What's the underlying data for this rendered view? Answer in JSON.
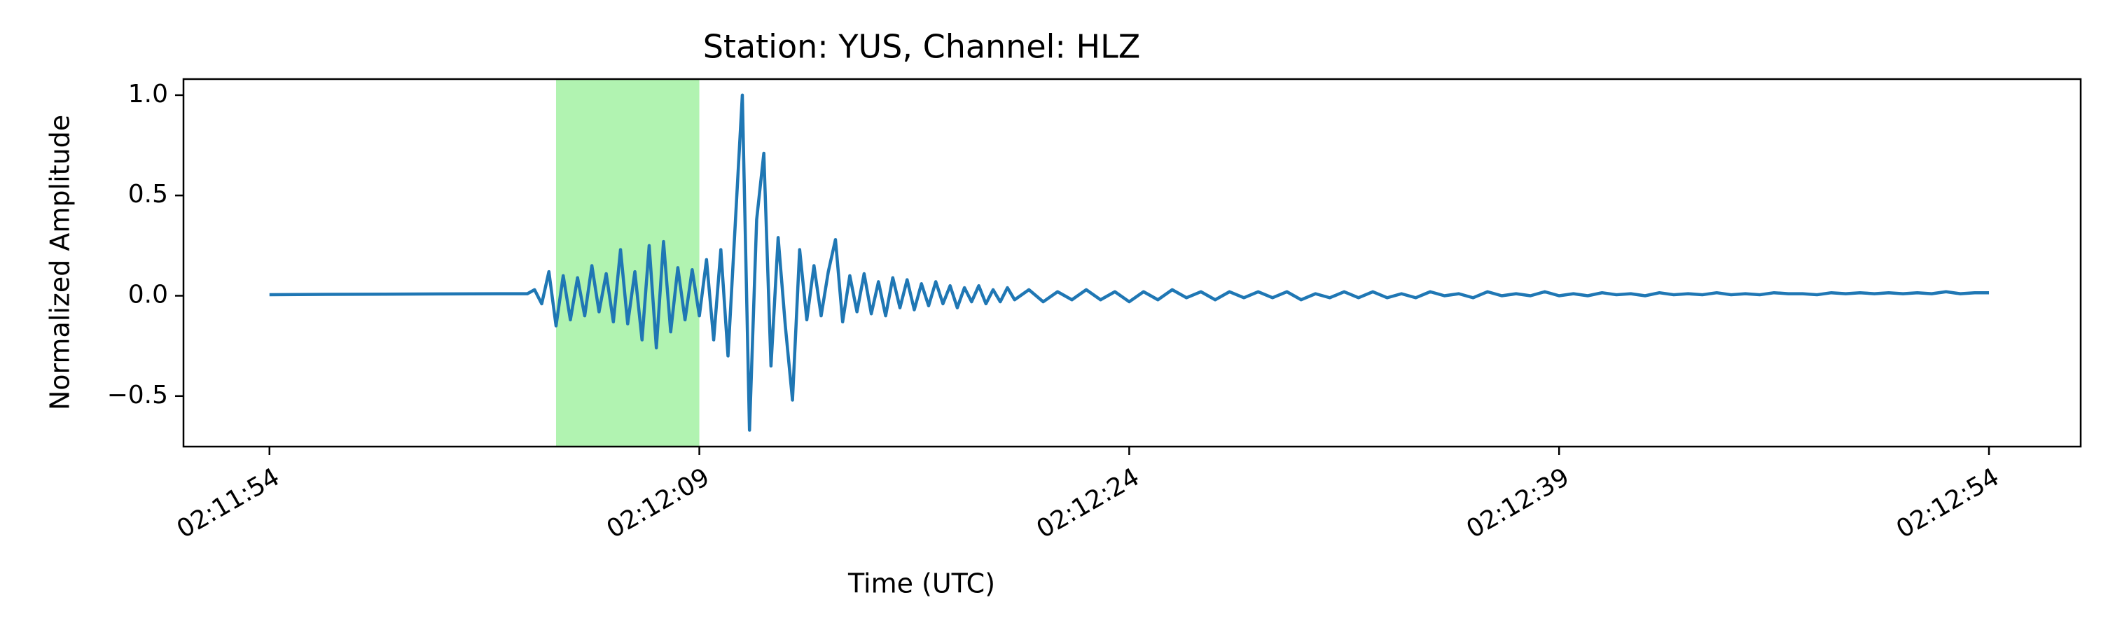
{
  "chart_data": {
    "type": "line",
    "title": "Station: YUS, Channel: HLZ",
    "x_label": "Time (UTC)",
    "y_label": "Normalized Amplitude",
    "color": "#1f77b4",
    "highlight": [
      7924,
      7929
    ],
    "highlight_color": "#b1f3b1",
    "xlim": [
      7911,
      7977.2
    ],
    "ylim": [
      -0.752,
      1.08
    ],
    "xticks": [
      {
        "value": 7914,
        "label": "02:11:54"
      },
      {
        "value": 7929,
        "label": "02:12:09"
      },
      {
        "value": 7944,
        "label": "02:12:24"
      },
      {
        "value": 7959,
        "label": "02:12:39"
      },
      {
        "value": 7974,
        "label": "02:12:54"
      }
    ],
    "yticks": [
      {
        "value": -0.5,
        "label": "−0.5"
      },
      {
        "value": 0,
        "label": "0.0"
      },
      {
        "value": 0.5,
        "label": "0.5"
      },
      {
        "value": 1,
        "label": "1.0"
      }
    ],
    "x": [
      7914,
      7916,
      7918,
      7920,
      7922,
      7923,
      7923.25,
      7923.5,
      7923.75,
      7924,
      7924.25,
      7924.5,
      7924.75,
      7925,
      7925.25,
      7925.5,
      7925.75,
      7926,
      7926.25,
      7926.5,
      7926.75,
      7927,
      7927.25,
      7927.5,
      7927.75,
      7928,
      7928.25,
      7928.5,
      7928.75,
      7929,
      7929.25,
      7929.5,
      7929.75,
      7930,
      7930.25,
      7930.5,
      7930.75,
      7931,
      7931.25,
      7931.5,
      7931.75,
      7932,
      7932.25,
      7932.5,
      7932.75,
      7933,
      7933.25,
      7933.5,
      7933.75,
      7934,
      7934.25,
      7934.5,
      7934.75,
      7935,
      7935.25,
      7935.5,
      7935.75,
      7936,
      7936.25,
      7936.5,
      7936.75,
      7937,
      7937.25,
      7937.5,
      7937.75,
      7938,
      7938.25,
      7938.5,
      7938.75,
      7939,
      7939.25,
      7939.5,
      7939.75,
      7940,
      7940.5,
      7941,
      7941.5,
      7942,
      7942.5,
      7943,
      7943.5,
      7944,
      7944.5,
      7945,
      7945.5,
      7946,
      7946.5,
      7947,
      7947.5,
      7948,
      7948.5,
      7949,
      7949.5,
      7950,
      7950.5,
      7951,
      7951.5,
      7952,
      7952.5,
      7953,
      7953.5,
      7954,
      7954.5,
      7955,
      7955.5,
      7956,
      7956.5,
      7957,
      7957.5,
      7958,
      7958.5,
      7959,
      7959.5,
      7960,
      7960.5,
      7961,
      7961.5,
      7962,
      7962.5,
      7963,
      7963.5,
      7964,
      7964.5,
      7965,
      7965.5,
      7966,
      7966.5,
      7967,
      7967.5,
      7968,
      7968.5,
      7969,
      7969.5,
      7970,
      7970.5,
      7971,
      7971.5,
      7972,
      7972.5,
      7973,
      7973.5,
      7974
    ],
    "values": [
      0.005,
      0.007,
      0.008,
      0.009,
      0.01,
      0.01,
      0.03,
      -0.04,
      0.12,
      -0.15,
      0.1,
      -0.12,
      0.09,
      -0.1,
      0.15,
      -0.08,
      0.11,
      -0.13,
      0.23,
      -0.14,
      0.12,
      -0.22,
      0.25,
      -0.26,
      0.27,
      -0.18,
      0.14,
      -0.12,
      0.13,
      -0.1,
      0.18,
      -0.22,
      0.23,
      -0.3,
      0.35,
      1.0,
      -0.67,
      0.38,
      0.71,
      -0.35,
      0.29,
      -0.15,
      -0.52,
      0.23,
      -0.12,
      0.15,
      -0.1,
      0.12,
      0.28,
      -0.13,
      0.1,
      -0.08,
      0.11,
      -0.09,
      0.07,
      -0.1,
      0.09,
      -0.06,
      0.08,
      -0.07,
      0.06,
      -0.05,
      0.07,
      -0.04,
      0.05,
      -0.06,
      0.04,
      -0.03,
      0.05,
      -0.04,
      0.03,
      -0.03,
      0.04,
      -0.02,
      0.03,
      -0.03,
      0.02,
      -0.02,
      0.03,
      -0.02,
      0.02,
      -0.03,
      0.02,
      -0.02,
      0.03,
      -0.01,
      0.02,
      -0.02,
      0.02,
      -0.01,
      0.02,
      -0.01,
      0.02,
      -0.02,
      0.01,
      -0.01,
      0.02,
      -0.01,
      0.02,
      -0.01,
      0.01,
      -0.01,
      0.02,
      0.0,
      0.01,
      -0.01,
      0.02,
      0.0,
      0.01,
      0.0,
      0.02,
      0.0,
      0.01,
      0.0,
      0.015,
      0.005,
      0.01,
      0.0,
      0.015,
      0.005,
      0.01,
      0.005,
      0.015,
      0.005,
      0.01,
      0.005,
      0.015,
      0.01,
      0.01,
      0.005,
      0.015,
      0.01,
      0.015,
      0.01,
      0.015,
      0.01,
      0.015,
      0.01,
      0.02,
      0.01,
      0.015,
      0.015
    ]
  }
}
